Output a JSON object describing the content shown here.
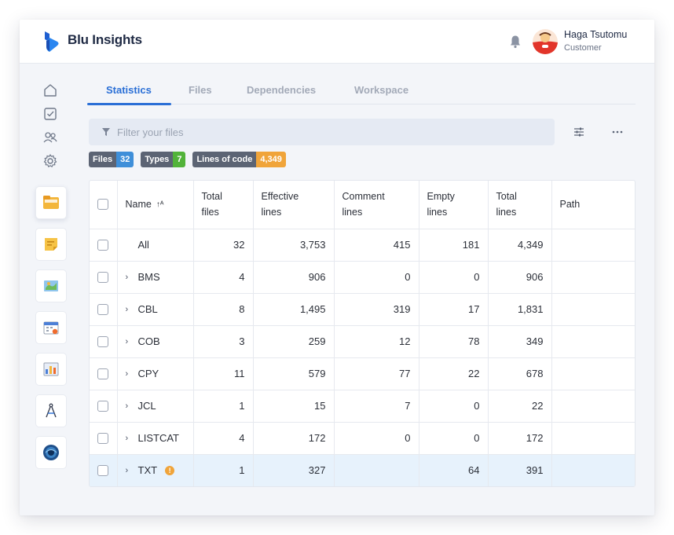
{
  "app": {
    "name": "Blu Insights"
  },
  "user": {
    "name": "Haga Tsutomu",
    "role": "Customer"
  },
  "tabs": [
    {
      "label": "Statistics",
      "active": true
    },
    {
      "label": "Files",
      "active": false
    },
    {
      "label": "Dependencies",
      "active": false
    },
    {
      "label": "Workspace",
      "active": false
    }
  ],
  "filter": {
    "placeholder": "Filter your files",
    "value": ""
  },
  "badges": [
    {
      "key": "Files",
      "value": "32",
      "color": "#3f8fd9"
    },
    {
      "key": "Types",
      "value": "7",
      "color": "#52b33a"
    },
    {
      "key": "Lines of code",
      "value": "4,349",
      "color": "#f0a43a"
    }
  ],
  "sidebar": {
    "nav_icons": [
      "home-icon",
      "checklist-icon",
      "users-icon",
      "gear-icon"
    ],
    "apps": [
      "codebase-app",
      "notes-app",
      "map-app",
      "calendar-app",
      "dashboard-app",
      "compass-app",
      "transformation-app"
    ]
  },
  "table": {
    "headers": {
      "name": "Name",
      "total_files": [
        "Total",
        "files"
      ],
      "effective_lines": [
        "Effective",
        "lines"
      ],
      "comment_lines": [
        "Comment",
        "lines"
      ],
      "empty_lines": [
        "Empty",
        "lines"
      ],
      "total_lines": [
        "Total",
        "lines"
      ],
      "path": "Path"
    },
    "rows": [
      {
        "name": "All",
        "expandable": false,
        "warning": false,
        "total_files": "32",
        "effective": "3,753",
        "comment": "415",
        "empty": "181",
        "total": "4,349",
        "path": ""
      },
      {
        "name": "BMS",
        "expandable": true,
        "warning": false,
        "total_files": "4",
        "effective": "906",
        "comment": "0",
        "empty": "0",
        "total": "906",
        "path": ""
      },
      {
        "name": "CBL",
        "expandable": true,
        "warning": false,
        "total_files": "8",
        "effective": "1,495",
        "comment": "319",
        "empty": "17",
        "total": "1,831",
        "path": ""
      },
      {
        "name": "COB",
        "expandable": true,
        "warning": false,
        "total_files": "3",
        "effective": "259",
        "comment": "12",
        "empty": "78",
        "total": "349",
        "path": ""
      },
      {
        "name": "CPY",
        "expandable": true,
        "warning": false,
        "total_files": "11",
        "effective": "579",
        "comment": "77",
        "empty": "22",
        "total": "678",
        "path": ""
      },
      {
        "name": "JCL",
        "expandable": true,
        "warning": false,
        "total_files": "1",
        "effective": "15",
        "comment": "7",
        "empty": "0",
        "total": "22",
        "path": ""
      },
      {
        "name": "LISTCAT",
        "expandable": true,
        "warning": false,
        "total_files": "4",
        "effective": "172",
        "comment": "0",
        "empty": "0",
        "total": "172",
        "path": ""
      },
      {
        "name": "TXT",
        "expandable": true,
        "warning": true,
        "selected": true,
        "total_files": "1",
        "effective": "327",
        "comment": "",
        "empty": "64",
        "total": "391",
        "path": ""
      }
    ]
  }
}
